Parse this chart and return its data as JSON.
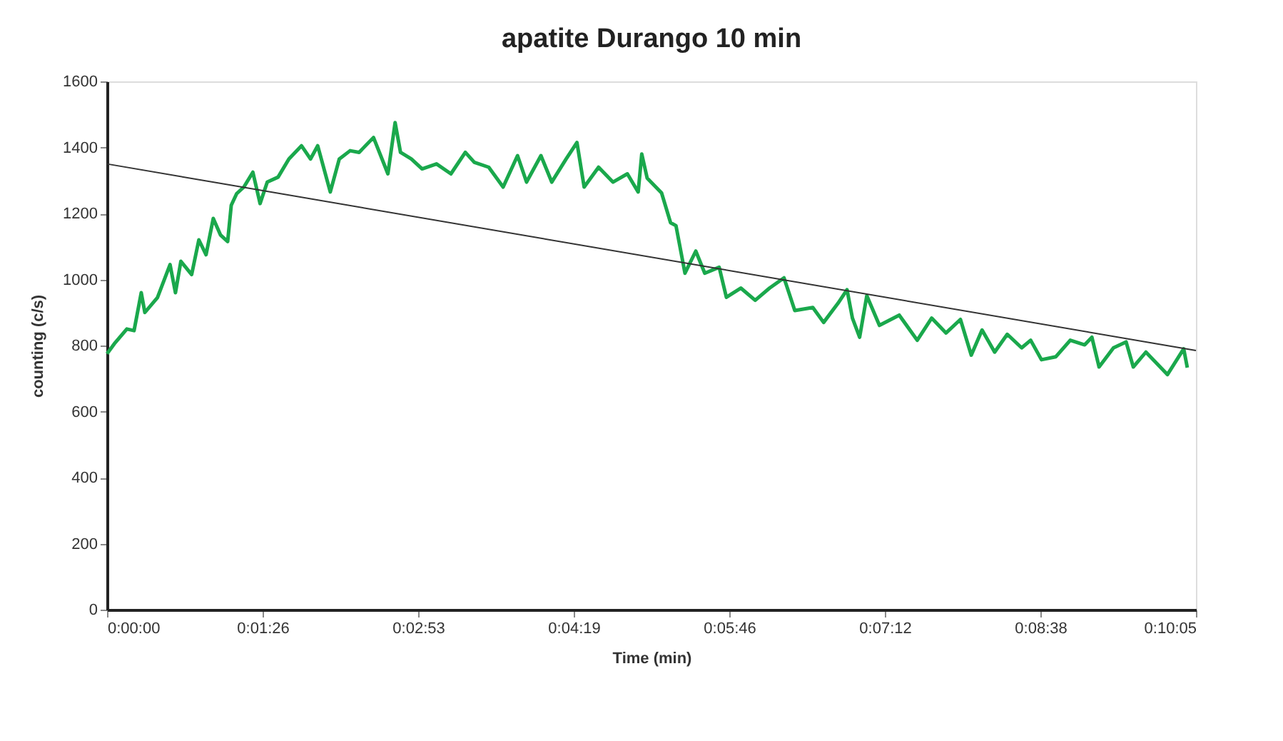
{
  "chart_data": {
    "type": "line",
    "title": "apatite Durango 10 min",
    "xlabel": "Time (min)",
    "ylabel": "counting (c/s)",
    "xlim": [
      0,
      604.8
    ],
    "ylim": [
      0,
      1600
    ],
    "xticks": [
      {
        "value": 0,
        "label": "0:00:00"
      },
      {
        "value": 86.4,
        "label": "0:01:26"
      },
      {
        "value": 172.8,
        "label": "0:02:53"
      },
      {
        "value": 259.2,
        "label": "0:04:19"
      },
      {
        "value": 345.6,
        "label": "0:05:46"
      },
      {
        "value": 432,
        "label": "0:07:12"
      },
      {
        "value": 518.4,
        "label": "0:08:38"
      },
      {
        "value": 604.8,
        "label": "0:10:05"
      }
    ],
    "yticks": [
      0,
      200,
      400,
      600,
      800,
      1000,
      1200,
      1400,
      1600
    ],
    "grid": false,
    "marker": "none",
    "line_style": "solid",
    "series": [
      {
        "color": "#1aa84c",
        "x": [
          0,
          4,
          11,
          15,
          19,
          21,
          28,
          35,
          38,
          41,
          47,
          51,
          55,
          59,
          63,
          67,
          69,
          72,
          76,
          81,
          85,
          89,
          95,
          101,
          108,
          113,
          117,
          124,
          129,
          135,
          140,
          148,
          156,
          160,
          163,
          169,
          175,
          183,
          191,
          199,
          204,
          212,
          220,
          228,
          233,
          241,
          247,
          255,
          261,
          265,
          273,
          281,
          289,
          295,
          297,
          300,
          308,
          313,
          316,
          321,
          327,
          332,
          340,
          344,
          352,
          360,
          368,
          376,
          382,
          392,
          398,
          406,
          411,
          414,
          418,
          422,
          429,
          440,
          450,
          458,
          466,
          474,
          480,
          486,
          493,
          500,
          508,
          513,
          519,
          527,
          535,
          543,
          547,
          551,
          559,
          566,
          570,
          577,
          589,
          598,
          600
        ],
        "values": [
          775,
          805,
          850,
          845,
          960,
          900,
          945,
          1045,
          960,
          1055,
          1015,
          1120,
          1075,
          1185,
          1135,
          1115,
          1225,
          1260,
          1280,
          1325,
          1230,
          1295,
          1310,
          1365,
          1405,
          1365,
          1405,
          1265,
          1365,
          1390,
          1385,
          1430,
          1320,
          1475,
          1385,
          1365,
          1335,
          1350,
          1320,
          1385,
          1355,
          1340,
          1280,
          1375,
          1295,
          1375,
          1295,
          1365,
          1415,
          1280,
          1340,
          1295,
          1320,
          1265,
          1380,
          1307,
          1262,
          1172,
          1163,
          1019,
          1086,
          1019,
          1037,
          946,
          974,
          937,
          974,
          1005,
          906,
          915,
          870,
          928,
          969,
          883,
          825,
          951,
          861,
          892,
          816,
          883,
          838,
          879,
          771,
          847,
          780,
          834,
          793,
          816,
          757,
          766,
          816,
          802,
          825,
          735,
          793,
          811,
          735,
          780,
          712,
          790,
          733
        ]
      },
      {
        "color": "#333333",
        "x": [
          0,
          604.8
        ],
        "values": [
          1350,
          785
        ]
      }
    ]
  }
}
